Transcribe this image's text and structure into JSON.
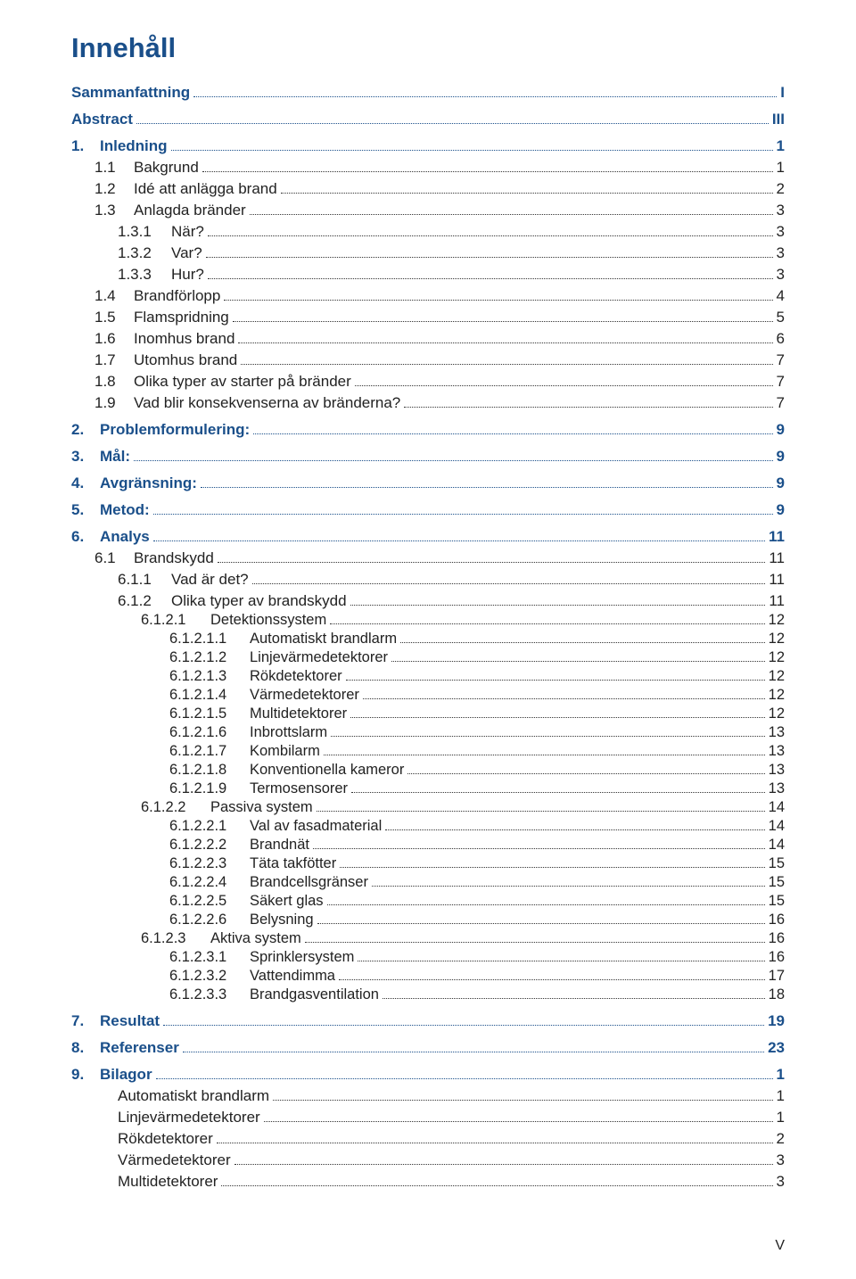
{
  "title": "Innehåll",
  "title_color": "#1a4f8a",
  "text_color": "#222222",
  "heading_blue": "#1a4f8a",
  "page_label": "V",
  "entries": [
    {
      "level": 0,
      "color": "blue",
      "num": "",
      "num_width": 0,
      "text": "Sammanfattning",
      "page": "I"
    },
    {
      "level": 0,
      "color": "blue",
      "num": "",
      "num_width": 0,
      "text": "Abstract",
      "page": "III"
    },
    {
      "level": 0,
      "color": "blue",
      "num": "1.",
      "num_width": 32,
      "text": "Inledning",
      "page": "1"
    },
    {
      "level": 1,
      "color": "black",
      "num": "1.1",
      "num_width": 44,
      "text": "Bakgrund",
      "page": "1"
    },
    {
      "level": 1,
      "color": "black",
      "num": "1.2",
      "num_width": 44,
      "text": "Idé att anlägga brand",
      "page": "2"
    },
    {
      "level": 1,
      "color": "black",
      "num": "1.3",
      "num_width": 44,
      "text": "Anlagda bränder",
      "page": "3"
    },
    {
      "level": 2,
      "color": "black",
      "num": "1.3.1",
      "num_width": 60,
      "text": "När?",
      "page": "3"
    },
    {
      "level": 2,
      "color": "black",
      "num": "1.3.2",
      "num_width": 60,
      "text": "Var?",
      "page": "3"
    },
    {
      "level": 2,
      "color": "black",
      "num": "1.3.3",
      "num_width": 60,
      "text": "Hur?",
      "page": "3"
    },
    {
      "level": 1,
      "color": "black",
      "num": "1.4",
      "num_width": 44,
      "text": "Brandförlopp",
      "page": "4"
    },
    {
      "level": 1,
      "color": "black",
      "num": "1.5",
      "num_width": 44,
      "text": "Flamspridning",
      "page": "5"
    },
    {
      "level": 1,
      "color": "black",
      "num": "1.6",
      "num_width": 44,
      "text": "Inomhus brand",
      "page": "6"
    },
    {
      "level": 1,
      "color": "black",
      "num": "1.7",
      "num_width": 44,
      "text": "Utomhus brand",
      "page": "7"
    },
    {
      "level": 1,
      "color": "black",
      "num": "1.8",
      "num_width": 44,
      "text": "Olika typer av starter på bränder",
      "page": "7"
    },
    {
      "level": 1,
      "color": "black",
      "num": "1.9",
      "num_width": 44,
      "text": "Vad blir konsekvenserna av bränderna?",
      "page": "7"
    },
    {
      "level": 0,
      "color": "blue",
      "num": "2.",
      "num_width": 32,
      "text": "Problemformulering:",
      "page": "9"
    },
    {
      "level": 0,
      "color": "blue",
      "num": "3.",
      "num_width": 32,
      "text": "Mål:",
      "page": "9"
    },
    {
      "level": 0,
      "color": "blue",
      "num": "4.",
      "num_width": 32,
      "text": "Avgränsning:",
      "page": "9"
    },
    {
      "level": 0,
      "color": "blue",
      "num": "5.",
      "num_width": 32,
      "text": "Metod:",
      "page": "9"
    },
    {
      "level": 0,
      "color": "blue",
      "num": "6.",
      "num_width": 32,
      "text": "Analys",
      "page": "11"
    },
    {
      "level": 1,
      "color": "black",
      "num": "6.1",
      "num_width": 44,
      "text": "Brandskydd",
      "page": "11"
    },
    {
      "level": 2,
      "color": "black",
      "num": "6.1.1",
      "num_width": 60,
      "text": "Vad är det?",
      "page": "11"
    },
    {
      "level": 2,
      "color": "black",
      "num": "6.1.2",
      "num_width": 60,
      "text": "Olika typer av brandskydd",
      "page": "11"
    },
    {
      "level": 3,
      "color": "black",
      "num": "6.1.2.1",
      "num_width": 78,
      "text": "Detektionssystem",
      "page": "12"
    },
    {
      "level": 4,
      "color": "black",
      "num": "6.1.2.1.1",
      "num_width": 90,
      "text": "Automatiskt brandlarm",
      "page": "12"
    },
    {
      "level": 4,
      "color": "black",
      "num": "6.1.2.1.2",
      "num_width": 90,
      "text": "Linjevärmedetektorer",
      "page": "12"
    },
    {
      "level": 4,
      "color": "black",
      "num": "6.1.2.1.3",
      "num_width": 90,
      "text": "Rökdetektorer",
      "page": "12"
    },
    {
      "level": 4,
      "color": "black",
      "num": "6.1.2.1.4",
      "num_width": 90,
      "text": "Värmedetektorer",
      "page": "12"
    },
    {
      "level": 4,
      "color": "black",
      "num": "6.1.2.1.5",
      "num_width": 90,
      "text": "Multidetektorer",
      "page": "12"
    },
    {
      "level": 4,
      "color": "black",
      "num": "6.1.2.1.6",
      "num_width": 90,
      "text": "Inbrottslarm",
      "page": "13"
    },
    {
      "level": 4,
      "color": "black",
      "num": "6.1.2.1.7",
      "num_width": 90,
      "text": "Kombilarm",
      "page": "13"
    },
    {
      "level": 4,
      "color": "black",
      "num": "6.1.2.1.8",
      "num_width": 90,
      "text": "Konventionella kameror",
      "page": "13"
    },
    {
      "level": 4,
      "color": "black",
      "num": "6.1.2.1.9",
      "num_width": 90,
      "text": "Termosensorer",
      "page": "13"
    },
    {
      "level": 3,
      "color": "black",
      "num": "6.1.2.2",
      "num_width": 78,
      "text": "Passiva system",
      "page": "14"
    },
    {
      "level": 4,
      "color": "black",
      "num": "6.1.2.2.1",
      "num_width": 90,
      "text": "Val av fasadmaterial",
      "page": "14"
    },
    {
      "level": 4,
      "color": "black",
      "num": "6.1.2.2.2",
      "num_width": 90,
      "text": "Brandnät",
      "page": "14"
    },
    {
      "level": 4,
      "color": "black",
      "num": "6.1.2.2.3",
      "num_width": 90,
      "text": "Täta takfötter",
      "page": "15"
    },
    {
      "level": 4,
      "color": "black",
      "num": "6.1.2.2.4",
      "num_width": 90,
      "text": "Brandcellsgränser",
      "page": "15"
    },
    {
      "level": 4,
      "color": "black",
      "num": "6.1.2.2.5",
      "num_width": 90,
      "text": "Säkert glas",
      "page": "15"
    },
    {
      "level": 4,
      "color": "black",
      "num": "6.1.2.2.6",
      "num_width": 90,
      "text": "Belysning",
      "page": "16"
    },
    {
      "level": 3,
      "color": "black",
      "num": "6.1.2.3",
      "num_width": 78,
      "text": "Aktiva system",
      "page": "16"
    },
    {
      "level": 4,
      "color": "black",
      "num": "6.1.2.3.1",
      "num_width": 90,
      "text": "Sprinklersystem",
      "page": "16"
    },
    {
      "level": 4,
      "color": "black",
      "num": "6.1.2.3.2",
      "num_width": 90,
      "text": "Vattendimma",
      "page": "17"
    },
    {
      "level": 4,
      "color": "black",
      "num": "6.1.2.3.3",
      "num_width": 90,
      "text": "Brandgasventilation",
      "page": "18"
    },
    {
      "level": 0,
      "color": "blue",
      "num": "7.",
      "num_width": 32,
      "text": "Resultat",
      "page": "19"
    },
    {
      "level": 0,
      "color": "blue",
      "num": "8.",
      "num_width": 32,
      "text": "Referenser",
      "page": "23"
    },
    {
      "level": 0,
      "color": "blue",
      "num": "9.",
      "num_width": 32,
      "text": "Bilagor",
      "page": "1"
    },
    {
      "level": "app",
      "color": "black",
      "num": "",
      "num_width": 0,
      "text": "Automatiskt brandlarm",
      "page": "1"
    },
    {
      "level": "app",
      "color": "black",
      "num": "",
      "num_width": 0,
      "text": "Linjevärmedetektorer",
      "page": "1"
    },
    {
      "level": "app",
      "color": "black",
      "num": "",
      "num_width": 0,
      "text": "Rökdetektorer",
      "page": "2"
    },
    {
      "level": "app",
      "color": "black",
      "num": "",
      "num_width": 0,
      "text": "Värmedetektorer",
      "page": "3"
    },
    {
      "level": "app",
      "color": "black",
      "num": "",
      "num_width": 0,
      "text": "Multidetektorer",
      "page": "3"
    }
  ]
}
